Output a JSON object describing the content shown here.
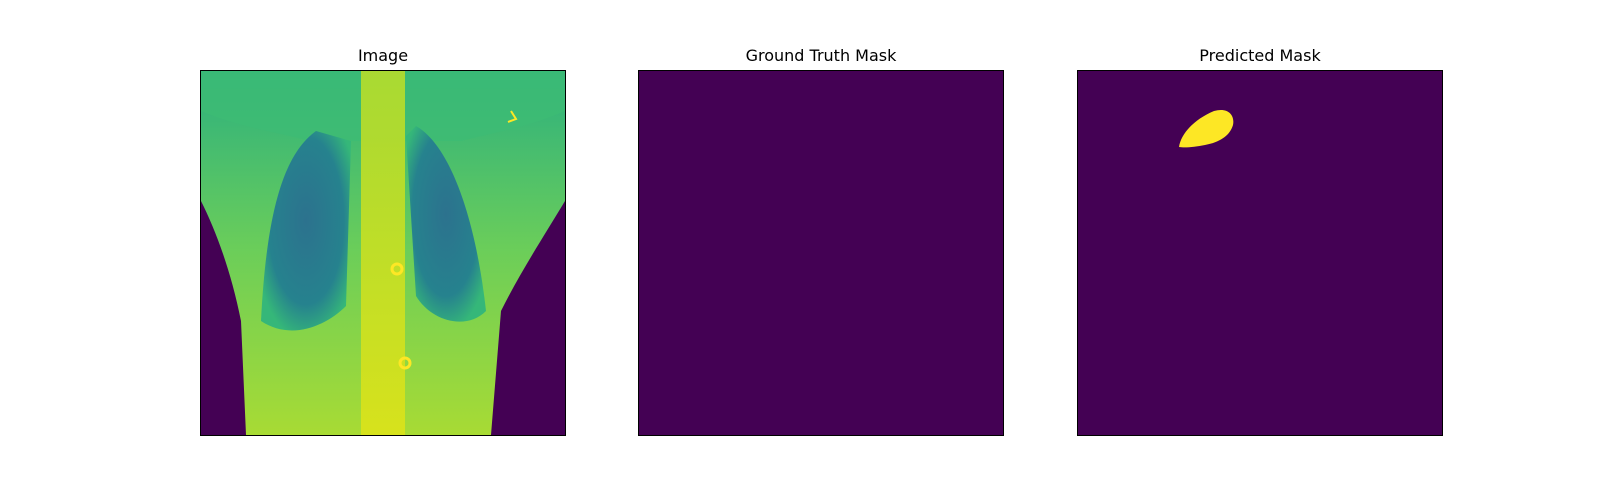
{
  "panels": [
    {
      "title": "Image",
      "content": "chest-xray-viridis"
    },
    {
      "title": "Ground Truth Mask",
      "content": "empty-mask"
    },
    {
      "title": "Predicted Mask",
      "content": "mask-with-blob"
    }
  ],
  "colors": {
    "mask_background": "#440154",
    "mask_foreground": "#fde725",
    "viridis_mid": "#21918c",
    "viridis_light": "#5ec962",
    "viridis_yellowgreen": "#b5de2b"
  }
}
